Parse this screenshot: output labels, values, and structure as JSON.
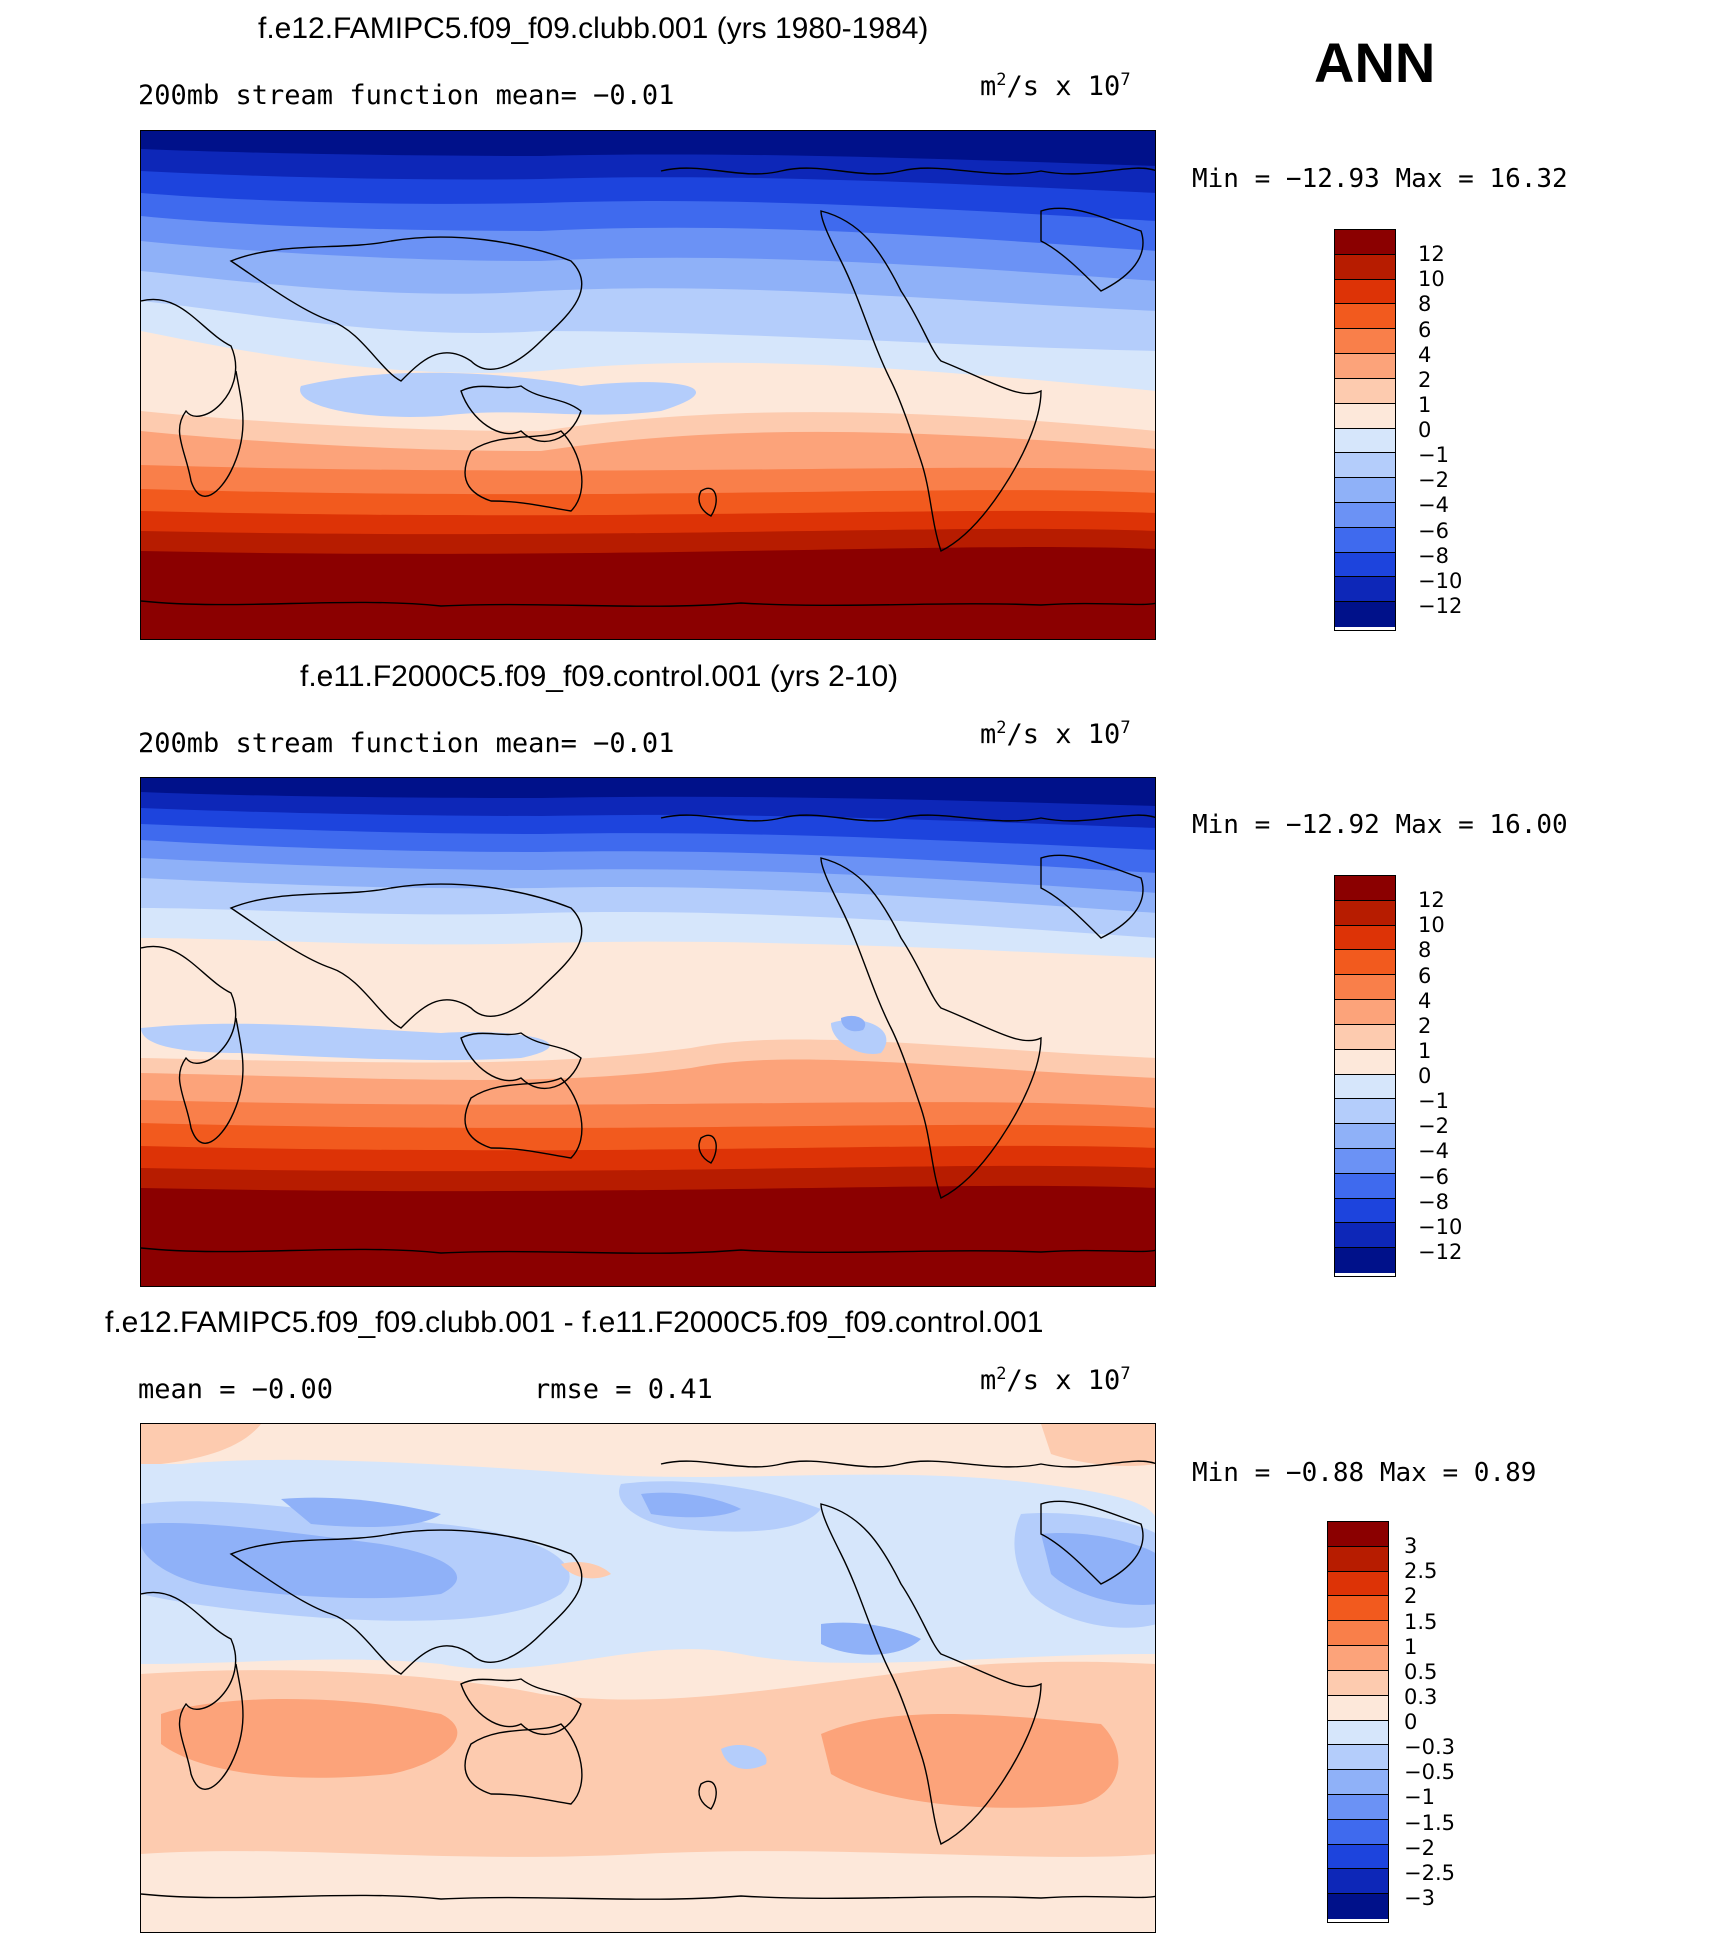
{
  "season": "ANN",
  "panels": [
    {
      "title": "f.e12.FAMIPC5.f09_f09.clubb.001 (yrs 1980-1984)",
      "stat_left": "200mb  stream  function    mean=   −0.01",
      "stat_right": "",
      "units_base": "m",
      "units_exp": "2",
      "units_rest": "/s  x  10",
      "units_exp2": "7",
      "minmax": "Min  =  −12.93  Max  =    16.32",
      "colorbar_labels": [
        "12",
        "10",
        "8",
        "6",
        "4",
        "2",
        "1",
        "0",
        "−1",
        "−2",
        "−4",
        "−6",
        "−8",
        "−10",
        "−12"
      ],
      "colors": [
        "#8b0000",
        "#b71c00",
        "#dd3306",
        "#f25a1e",
        "#f97f4a",
        "#fca37a",
        "#fdcbaf",
        "#fde8da",
        "#d6e6fb",
        "#b4cdfb",
        "#8fb1f8",
        "#6b92f5",
        "#3f6aee",
        "#1d44dd",
        "#0d27b8",
        "#00118a"
      ]
    },
    {
      "title": "f.e11.F2000C5.f09_f09.control.001 (yrs 2-10)",
      "stat_left": "200mb  stream  function    mean=   −0.01",
      "stat_right": "",
      "units_base": "m",
      "units_exp": "2",
      "units_rest": "/s  x  10",
      "units_exp2": "7",
      "minmax": "Min  =  −12.92  Max  =    16.00",
      "colorbar_labels": [
        "12",
        "10",
        "8",
        "6",
        "4",
        "2",
        "1",
        "0",
        "−1",
        "−2",
        "−4",
        "−6",
        "−8",
        "−10",
        "−12"
      ],
      "colors": [
        "#8b0000",
        "#b71c00",
        "#dd3306",
        "#f25a1e",
        "#f97f4a",
        "#fca37a",
        "#fdcbaf",
        "#fde8da",
        "#d6e6fb",
        "#b4cdfb",
        "#8fb1f8",
        "#6b92f5",
        "#3f6aee",
        "#1d44dd",
        "#0d27b8",
        "#00118a"
      ]
    },
    {
      "title": "f.e12.FAMIPC5.f09_f09.clubb.001 - f.e11.F2000C5.f09_f09.control.001",
      "stat_left": "mean  =   −0.00",
      "stat_right": "rmse  =    0.41",
      "units_base": "m",
      "units_exp": "2",
      "units_rest": "/s  x  10",
      "units_exp2": "7",
      "minmax": "Min  =   −0.88  Max  =    0.89",
      "colorbar_labels": [
        "3",
        "2.5",
        "2",
        "1.5",
        "1",
        "0.5",
        "0.3",
        "0",
        "−0.3",
        "−0.5",
        "−1",
        "−1.5",
        "−2",
        "−2.5",
        "−3"
      ],
      "colors": [
        "#8b0000",
        "#b71c00",
        "#dd3306",
        "#f25a1e",
        "#f97f4a",
        "#fca37a",
        "#fdcbaf",
        "#fde8da",
        "#d6e6fb",
        "#b4cdfb",
        "#8fb1f8",
        "#6b92f5",
        "#3f6aee",
        "#1d44dd",
        "#0d27b8",
        "#00118a"
      ]
    }
  ]
}
